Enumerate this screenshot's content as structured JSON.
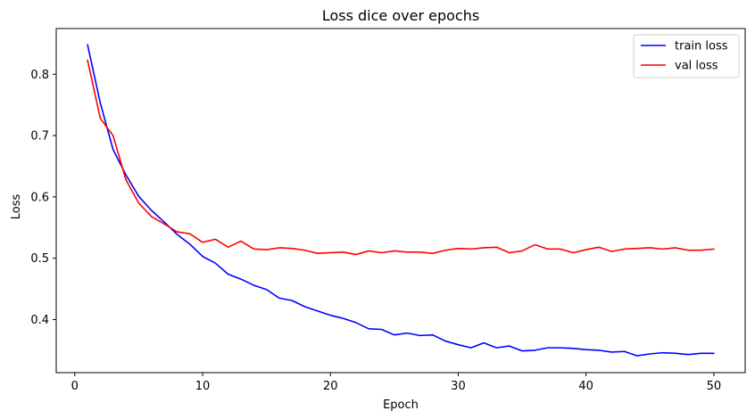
{
  "chart_data": {
    "type": "line",
    "title": "Loss dice over epochs",
    "xlabel": "Epoch",
    "ylabel": "Loss",
    "xlim": [
      -1.45,
      52.45
    ],
    "ylim": [
      0.3135,
      0.8745
    ],
    "xticks": [
      0,
      10,
      20,
      30,
      40,
      50
    ],
    "yticks": [
      0.4,
      0.5,
      0.6,
      0.7,
      0.8
    ],
    "grid": false,
    "legend_position": "top-right",
    "x": [
      1,
      2,
      3,
      4,
      5,
      6,
      7,
      8,
      9,
      10,
      11,
      12,
      13,
      14,
      15,
      16,
      17,
      18,
      19,
      20,
      21,
      22,
      23,
      24,
      25,
      26,
      27,
      28,
      29,
      30,
      31,
      32,
      33,
      34,
      35,
      36,
      37,
      38,
      39,
      40,
      41,
      42,
      43,
      44,
      45,
      46,
      47,
      48,
      49,
      50
    ],
    "series": [
      {
        "name": "train loss",
        "color": "#0000ff",
        "values": [
          0.848,
          0.753,
          0.677,
          0.636,
          0.601,
          0.578,
          0.559,
          0.539,
          0.523,
          0.503,
          0.492,
          0.474,
          0.466,
          0.456,
          0.449,
          0.435,
          0.431,
          0.421,
          0.414,
          0.407,
          0.402,
          0.395,
          0.385,
          0.384,
          0.375,
          0.378,
          0.374,
          0.375,
          0.365,
          0.359,
          0.354,
          0.362,
          0.354,
          0.357,
          0.349,
          0.35,
          0.354,
          0.354,
          0.353,
          0.351,
          0.35,
          0.347,
          0.348,
          0.341,
          0.344,
          0.346,
          0.345,
          0.343,
          0.345,
          0.345
        ]
      },
      {
        "name": "val loss",
        "color": "#ff0000",
        "values": [
          0.823,
          0.728,
          0.7,
          0.628,
          0.59,
          0.568,
          0.556,
          0.543,
          0.54,
          0.526,
          0.531,
          0.518,
          0.528,
          0.515,
          0.514,
          0.517,
          0.516,
          0.513,
          0.508,
          0.509,
          0.51,
          0.506,
          0.512,
          0.509,
          0.512,
          0.51,
          0.51,
          0.508,
          0.513,
          0.516,
          0.515,
          0.517,
          0.518,
          0.509,
          0.512,
          0.522,
          0.515,
          0.515,
          0.509,
          0.514,
          0.518,
          0.511,
          0.515,
          0.516,
          0.517,
          0.515,
          0.517,
          0.513,
          0.513,
          0.515
        ]
      }
    ]
  }
}
